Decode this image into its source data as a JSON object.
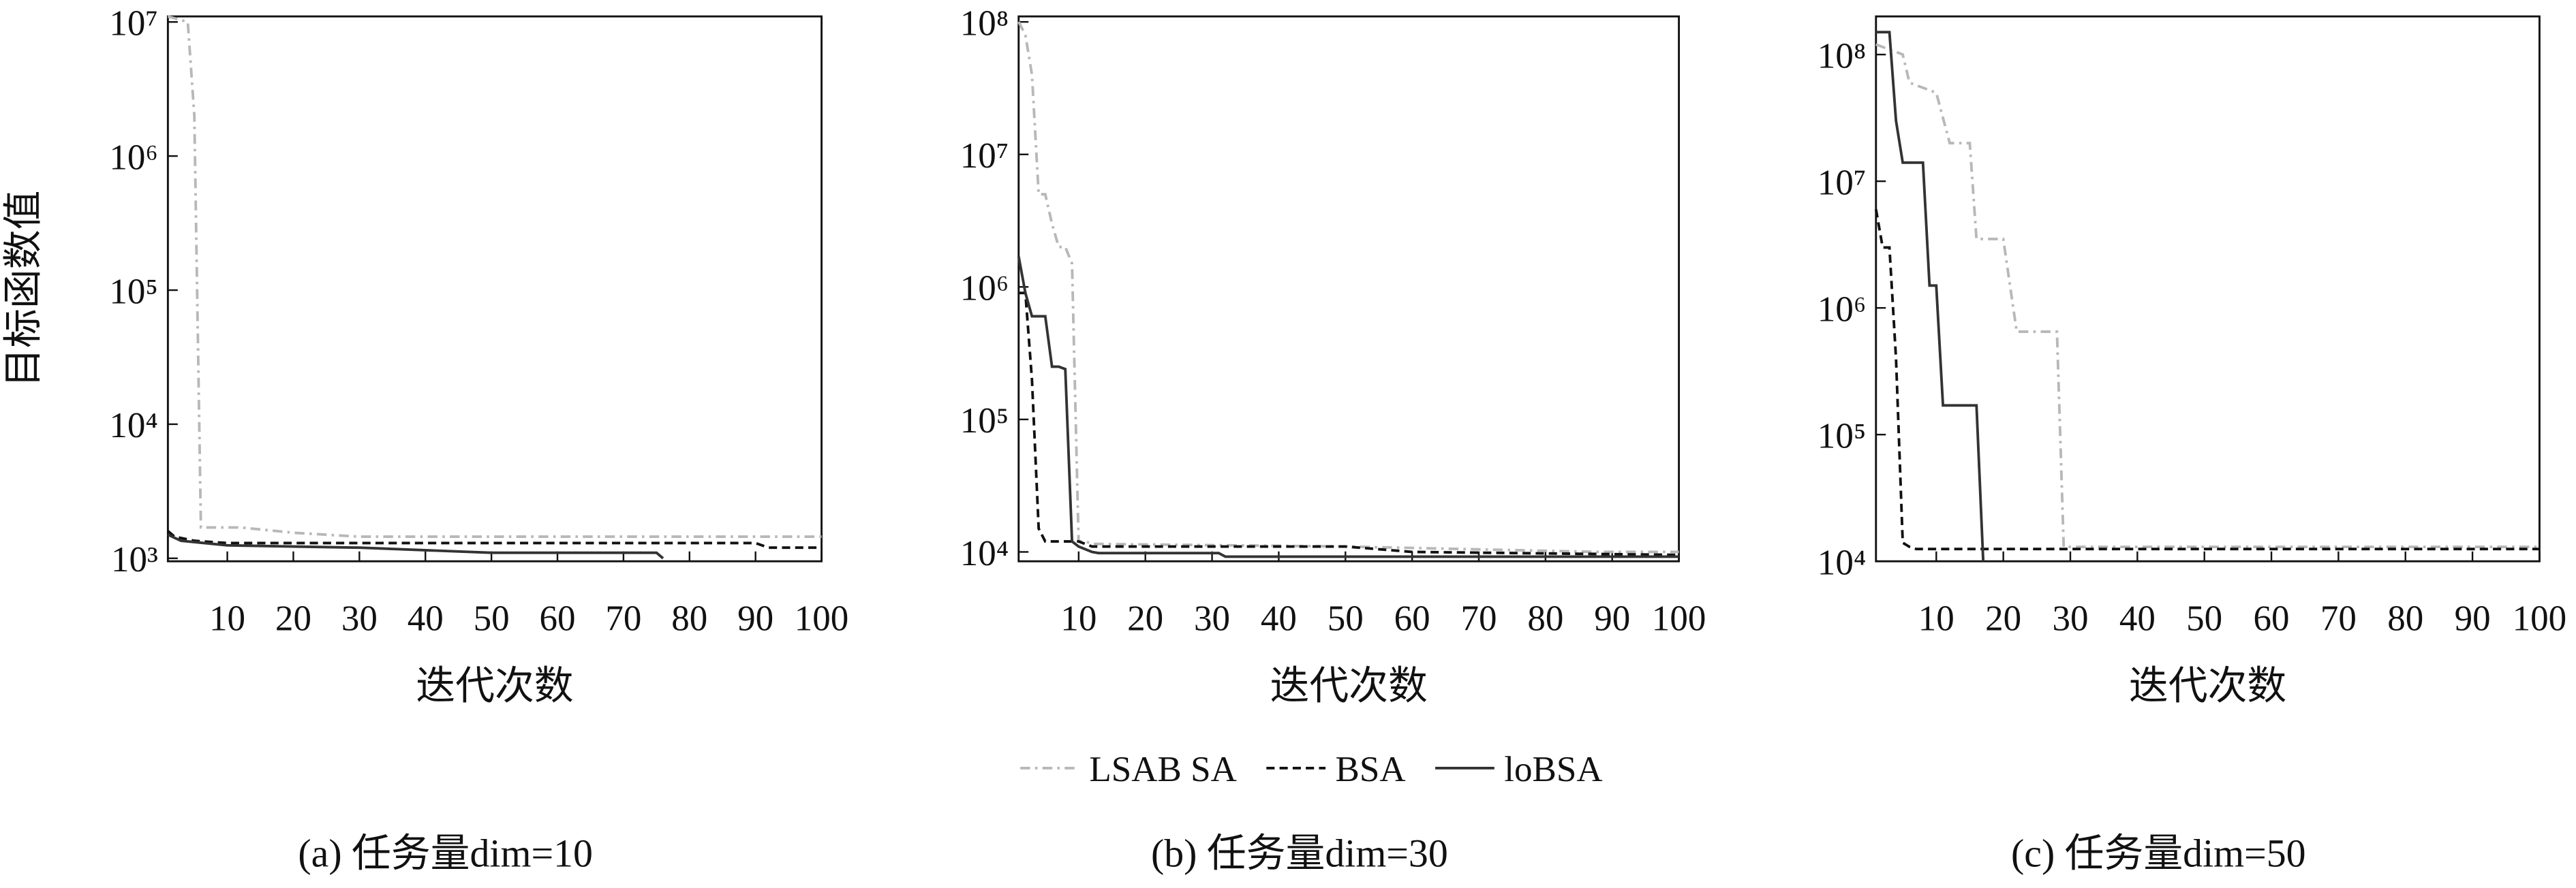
{
  "chart_data": [
    {
      "type": "line",
      "subtitle": "(a) 任务量dim=10",
      "xlabel": "迭代次数",
      "ylabel": "目标函数值",
      "log_y": true,
      "xlim": [
        1,
        100
      ],
      "xticks": [
        10,
        20,
        30,
        40,
        50,
        60,
        70,
        80,
        90,
        100
      ],
      "ylim": [
        950,
        11000000
      ],
      "yticks": [
        {
          "value": 1000,
          "label": "10³"
        },
        {
          "value": 10000,
          "label": "10⁴"
        },
        {
          "value": 100000,
          "label": "10⁵"
        },
        {
          "value": 1000000,
          "label": "10⁶"
        },
        {
          "value": 10000000,
          "label": "10⁷"
        }
      ],
      "series": [
        {
          "color": "#b8b8b8",
          "style": "dashdot",
          "x": [
            1,
            4,
            5,
            6,
            12,
            20,
            30,
            100
          ],
          "values": [
            11000000,
            10000000,
            2000000,
            1700,
            1700,
            1550,
            1450,
            1450
          ]
        },
        {
          "color": "#111111",
          "style": "dashed",
          "x": [
            1,
            2,
            5,
            10,
            30,
            90,
            92,
            100
          ],
          "values": [
            1600,
            1450,
            1350,
            1300,
            1300,
            1300,
            1200,
            1200
          ]
        },
        {
          "color": "#333333",
          "style": "solid",
          "x": [
            1,
            3,
            10,
            30,
            50,
            75,
            76
          ],
          "values": [
            1500,
            1350,
            1250,
            1200,
            1100,
            1100,
            1000
          ]
        }
      ]
    },
    {
      "type": "line",
      "subtitle": "(b) 任务量dim=30",
      "xlabel": "迭代次数",
      "xlim": [
        1,
        100
      ],
      "xticks": [
        10,
        20,
        30,
        40,
        50,
        60,
        70,
        80,
        90,
        100
      ],
      "ylim": [
        8500,
        110000000
      ],
      "yticks": [
        {
          "value": 10000,
          "label": "10⁴"
        },
        {
          "value": 100000,
          "label": "10⁵"
        },
        {
          "value": 1000000,
          "label": "10⁶"
        },
        {
          "value": 10000000,
          "label": "10⁷"
        },
        {
          "value": 100000000,
          "label": "10⁸"
        }
      ],
      "series": [
        {
          "name": "LSAB SA",
          "color": "#b8b8b8",
          "style": "dashdot",
          "x": [
            1,
            2,
            3,
            4,
            5,
            6,
            7,
            8,
            9,
            10,
            11,
            12,
            50,
            88,
            100
          ],
          "values": [
            100000000,
            80000000,
            40000000,
            5000000,
            5000000,
            3000000,
            2000000,
            2000000,
            1500000,
            12000,
            12000,
            11500,
            11000,
            10000,
            10000
          ]
        },
        {
          "name": "BSA",
          "color": "#111111",
          "style": "dashed",
          "x": [
            1,
            2,
            3,
            4,
            5,
            6,
            10,
            12,
            50,
            60,
            100
          ],
          "values": [
            900000,
            900000,
            200000,
            15000,
            12000,
            12000,
            12000,
            11000,
            11000,
            10000,
            9500
          ]
        },
        {
          "name": "loBSA",
          "color": "#333333",
          "style": "solid",
          "x": [
            1,
            2,
            3,
            5,
            6,
            7,
            8,
            9,
            10,
            12,
            13,
            31,
            32,
            100
          ],
          "values": [
            1700000,
            900000,
            600000,
            600000,
            250000,
            250000,
            240000,
            12000,
            11000,
            10000,
            9800,
            9800,
            9200,
            9200
          ]
        }
      ]
    },
    {
      "type": "line",
      "subtitle": "(c) 任务量dim=50",
      "xlabel": "迭代次数",
      "log_y": true,
      "xlim": [
        1,
        100
      ],
      "xticks": [
        10,
        20,
        30,
        40,
        50,
        60,
        70,
        80,
        90,
        100
      ],
      "ylim": [
        10000,
        200000000
      ],
      "yticks": [
        {
          "value": 10000,
          "label": "10⁴"
        },
        {
          "value": 100000,
          "label": "10⁵"
        },
        {
          "value": 1000000,
          "label": "10⁶"
        },
        {
          "value": 10000000,
          "label": "10⁷"
        },
        {
          "value": 100000000,
          "label": "10⁸"
        }
      ],
      "series": [
        {
          "color": "#b8b8b8",
          "style": "dashdot",
          "x": [
            1,
            5,
            6,
            10,
            12,
            15,
            16,
            20,
            22,
            28,
            29,
            100
          ],
          "values": [
            120000000,
            100000000,
            60000000,
            50000000,
            20000000,
            20000000,
            3500000,
            3500000,
            650000,
            650000,
            13000,
            13000
          ]
        },
        {
          "color": "#111111",
          "style": "dashed",
          "x": [
            1,
            2,
            3,
            4,
            5,
            6,
            7,
            100
          ],
          "values": [
            6000000,
            3000000,
            3000000,
            400000,
            14000,
            13000,
            12500,
            12500
          ]
        },
        {
          "color": "#333333",
          "style": "solid",
          "x": [
            1,
            3,
            4,
            5,
            7,
            8,
            9,
            10,
            11,
            12,
            16,
            17
          ],
          "values": [
            150000000,
            150000000,
            30000000,
            14000000,
            14000000,
            14000000,
            1500000,
            1500000,
            170000,
            170000,
            170000,
            10000
          ]
        }
      ]
    }
  ]
}
